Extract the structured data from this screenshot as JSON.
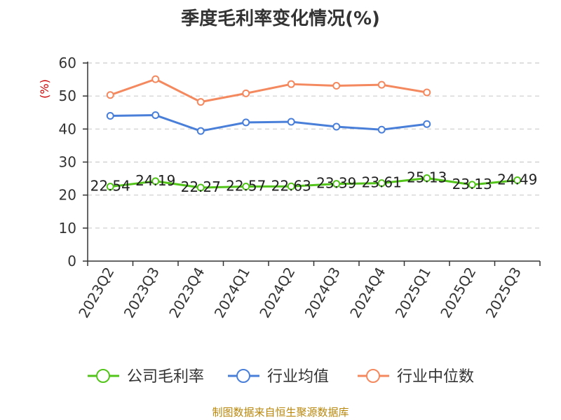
{
  "chart_data": {
    "type": "line",
    "title": "季度毛利率变化情况(%)",
    "ylabel": "(%)",
    "xlabel": "",
    "ylim": [
      0,
      60
    ],
    "yticks": [
      0,
      10,
      20,
      30,
      40,
      50,
      60
    ],
    "grid": true,
    "legend_position": "bottom",
    "categories": [
      "2023Q2",
      "2023Q3",
      "2023Q4",
      "2024Q1",
      "2024Q2",
      "2024Q3",
      "2024Q4",
      "2025Q1",
      "2025Q2",
      "2025Q3"
    ],
    "series": [
      {
        "name": "公司毛利率",
        "color": "#52c41a",
        "values": [
          22.54,
          24.19,
          22.27,
          22.57,
          22.63,
          23.39,
          23.61,
          25.13,
          23.13,
          24.49
        ],
        "labels": [
          "22.54",
          "24.19",
          "22.27",
          "22.57",
          "22.63",
          "23.39",
          "23.61",
          "25.13",
          "23.13",
          "24.49"
        ]
      },
      {
        "name": "行业均值",
        "color": "#4a7fd9",
        "values": [
          44.0,
          44.2,
          39.4,
          42.0,
          42.2,
          40.7,
          39.8,
          41.5,
          null,
          null
        ]
      },
      {
        "name": "行业中位数",
        "color": "#f4895f",
        "values": [
          50.3,
          55.1,
          48.2,
          50.8,
          53.6,
          53.1,
          53.4,
          51.1,
          null,
          null
        ]
      }
    ]
  },
  "source_note": "制图数据来自恒生聚源数据库"
}
